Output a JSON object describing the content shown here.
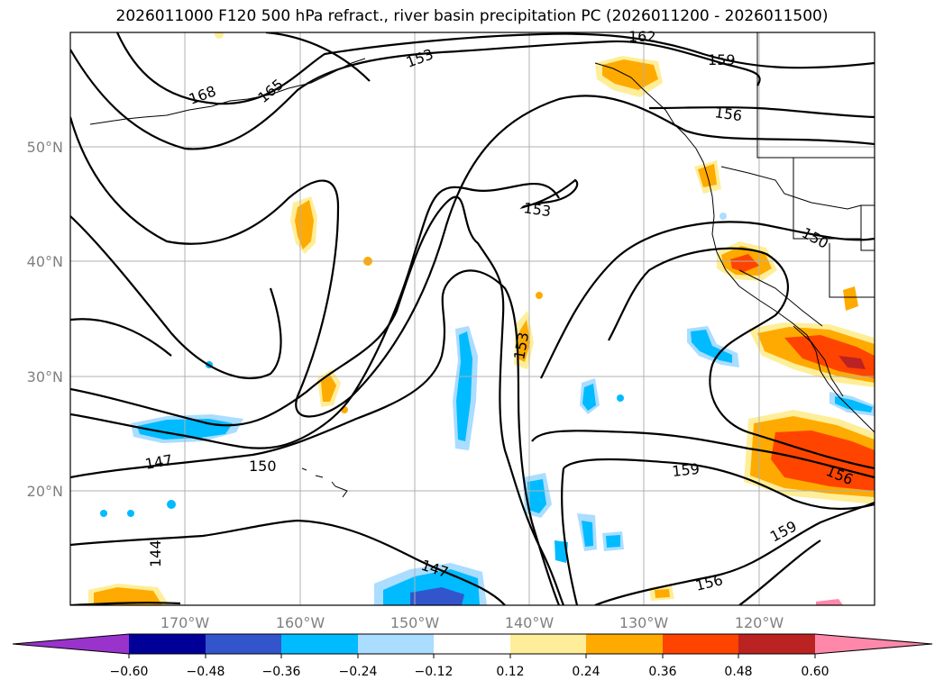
{
  "title": "2026011000 F120 500 hPa refract., river basin precipitation PC (2026011200 - 2026011500)",
  "map": {
    "lat_labels": [
      "50°N",
      "40°N",
      "30°N",
      "20°N"
    ],
    "lon_labels": [
      "170°W",
      "160°W",
      "150°W",
      "140°W",
      "130°W",
      "120°W"
    ],
    "contour_labels": [
      "162",
      "159",
      "156",
      "168",
      "165",
      "153",
      "150",
      "153",
      "147",
      "150",
      "144",
      "147",
      "153",
      "159",
      "156",
      "159",
      "156"
    ]
  },
  "colorbar": {
    "ticks": [
      "−0.60",
      "−0.48",
      "−0.36",
      "−0.24",
      "−0.12",
      "0.12",
      "0.24",
      "0.36",
      "0.48",
      "0.60"
    ],
    "colors": [
      "#9933cc",
      "#000099",
      "#3355cc",
      "#00bbff",
      "#aaddff",
      "#ffffff",
      "#ffee99",
      "#ffaa00",
      "#ff4400",
      "#bb2222",
      "#ff88aa"
    ]
  }
}
